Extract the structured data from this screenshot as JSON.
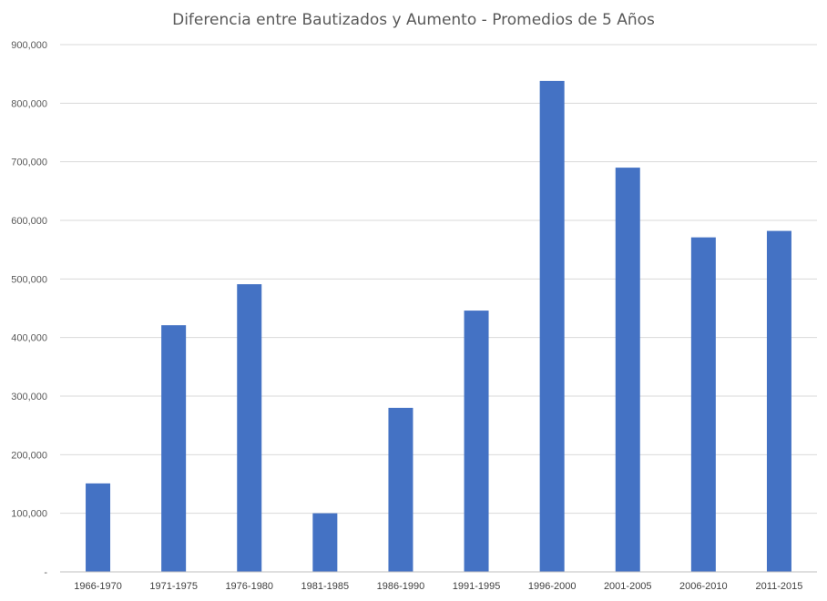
{
  "chart_data": {
    "type": "bar",
    "title": "Diferencia entre Bautizados y Aumento - Promedios de 5 Años",
    "xlabel": "",
    "ylabel": "",
    "categories": [
      "1966-1970",
      "1971-1975",
      "1976-1980",
      "1981-1985",
      "1986-1990",
      "1991-1995",
      "1996-2000",
      "2001-2005",
      "2006-2010",
      "2011-2015"
    ],
    "values": [
      151000,
      421000,
      491000,
      100000,
      280000,
      446000,
      838000,
      690000,
      571000,
      582000
    ],
    "ylim": [
      0,
      900000
    ],
    "yticks": [
      0,
      100000,
      200000,
      300000,
      400000,
      500000,
      600000,
      700000,
      800000,
      900000
    ],
    "ytick_labels": [
      "-",
      "100,000",
      "200,000",
      "300,000",
      "400,000",
      "500,000",
      "600,000",
      "700,000",
      "800,000",
      "900,000"
    ],
    "grid": true,
    "legend": "none",
    "bar_color": "#4472c4"
  }
}
